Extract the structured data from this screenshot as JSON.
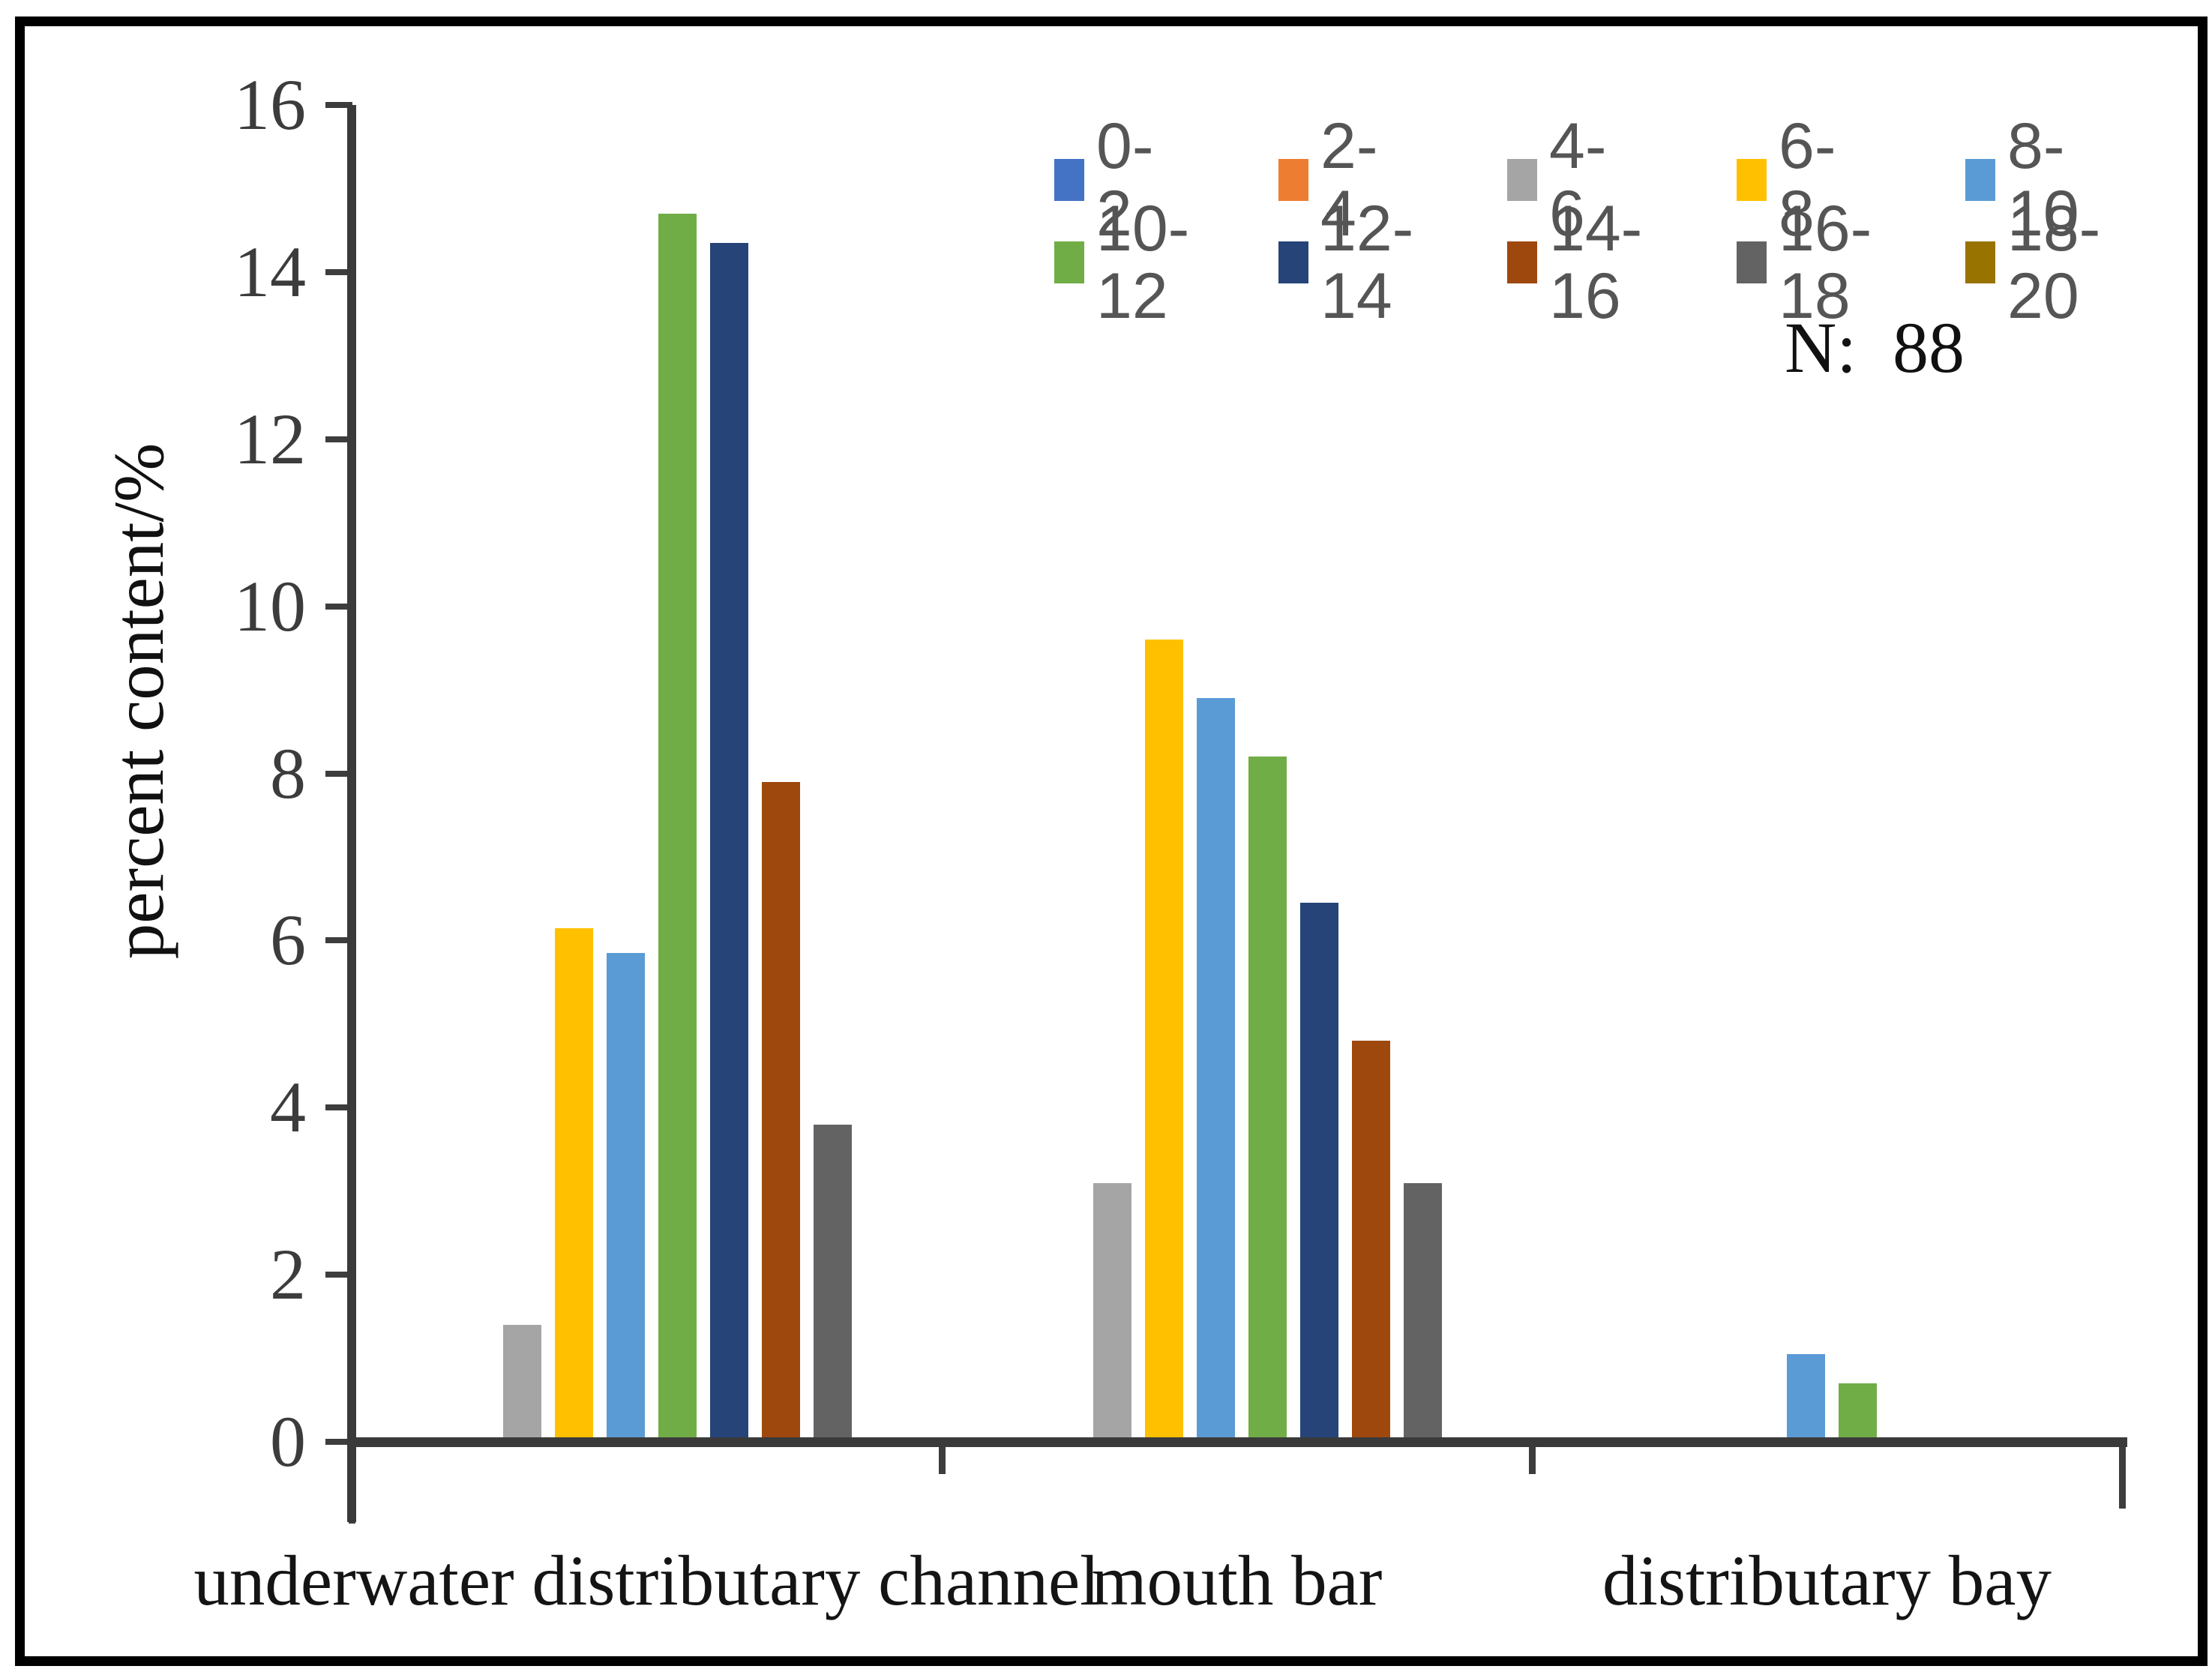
{
  "figure": {
    "annotation": "N:  88"
  },
  "chart_data": {
    "type": "bar",
    "title": "",
    "xlabel": "",
    "ylabel": "percent content/%",
    "ylim": [
      0,
      16
    ],
    "yticks": [
      0,
      2,
      4,
      6,
      8,
      10,
      12,
      14,
      16
    ],
    "grid": false,
    "legend_position": "top-right",
    "legend_rows": [
      [
        "0-2",
        "2-4",
        "4-6",
        "6-8",
        "8-10"
      ],
      [
        "10-12",
        "12-14",
        "14-16",
        "16-18",
        "18-20"
      ]
    ],
    "categories": [
      "underwater distributary channel",
      "mouth bar",
      "distributary bay"
    ],
    "series": [
      {
        "name": "0-2",
        "color": "#4472C4",
        "values": [
          0,
          0,
          0
        ]
      },
      {
        "name": "2-4",
        "color": "#ED7D31",
        "values": [
          0,
          0,
          0
        ]
      },
      {
        "name": "4-6",
        "color": "#A5A5A5",
        "values": [
          1.4,
          3.1,
          0
        ]
      },
      {
        "name": "6-8",
        "color": "#FFC000",
        "values": [
          6.15,
          9.6,
          0
        ]
      },
      {
        "name": "8-10",
        "color": "#5B9BD5",
        "values": [
          5.85,
          8.9,
          1.05
        ]
      },
      {
        "name": "10-12",
        "color": "#70AD47",
        "values": [
          14.7,
          8.2,
          0.7
        ]
      },
      {
        "name": "12-14",
        "color": "#264478",
        "values": [
          14.35,
          6.45,
          0
        ]
      },
      {
        "name": "14-16",
        "color": "#9E480E",
        "values": [
          7.9,
          4.8,
          0
        ]
      },
      {
        "name": "16-18",
        "color": "#636363",
        "values": [
          3.8,
          3.1,
          0
        ]
      },
      {
        "name": "18-20",
        "color": "#997300",
        "values": [
          0,
          0,
          0
        ]
      }
    ],
    "annotation": "N:  88"
  }
}
